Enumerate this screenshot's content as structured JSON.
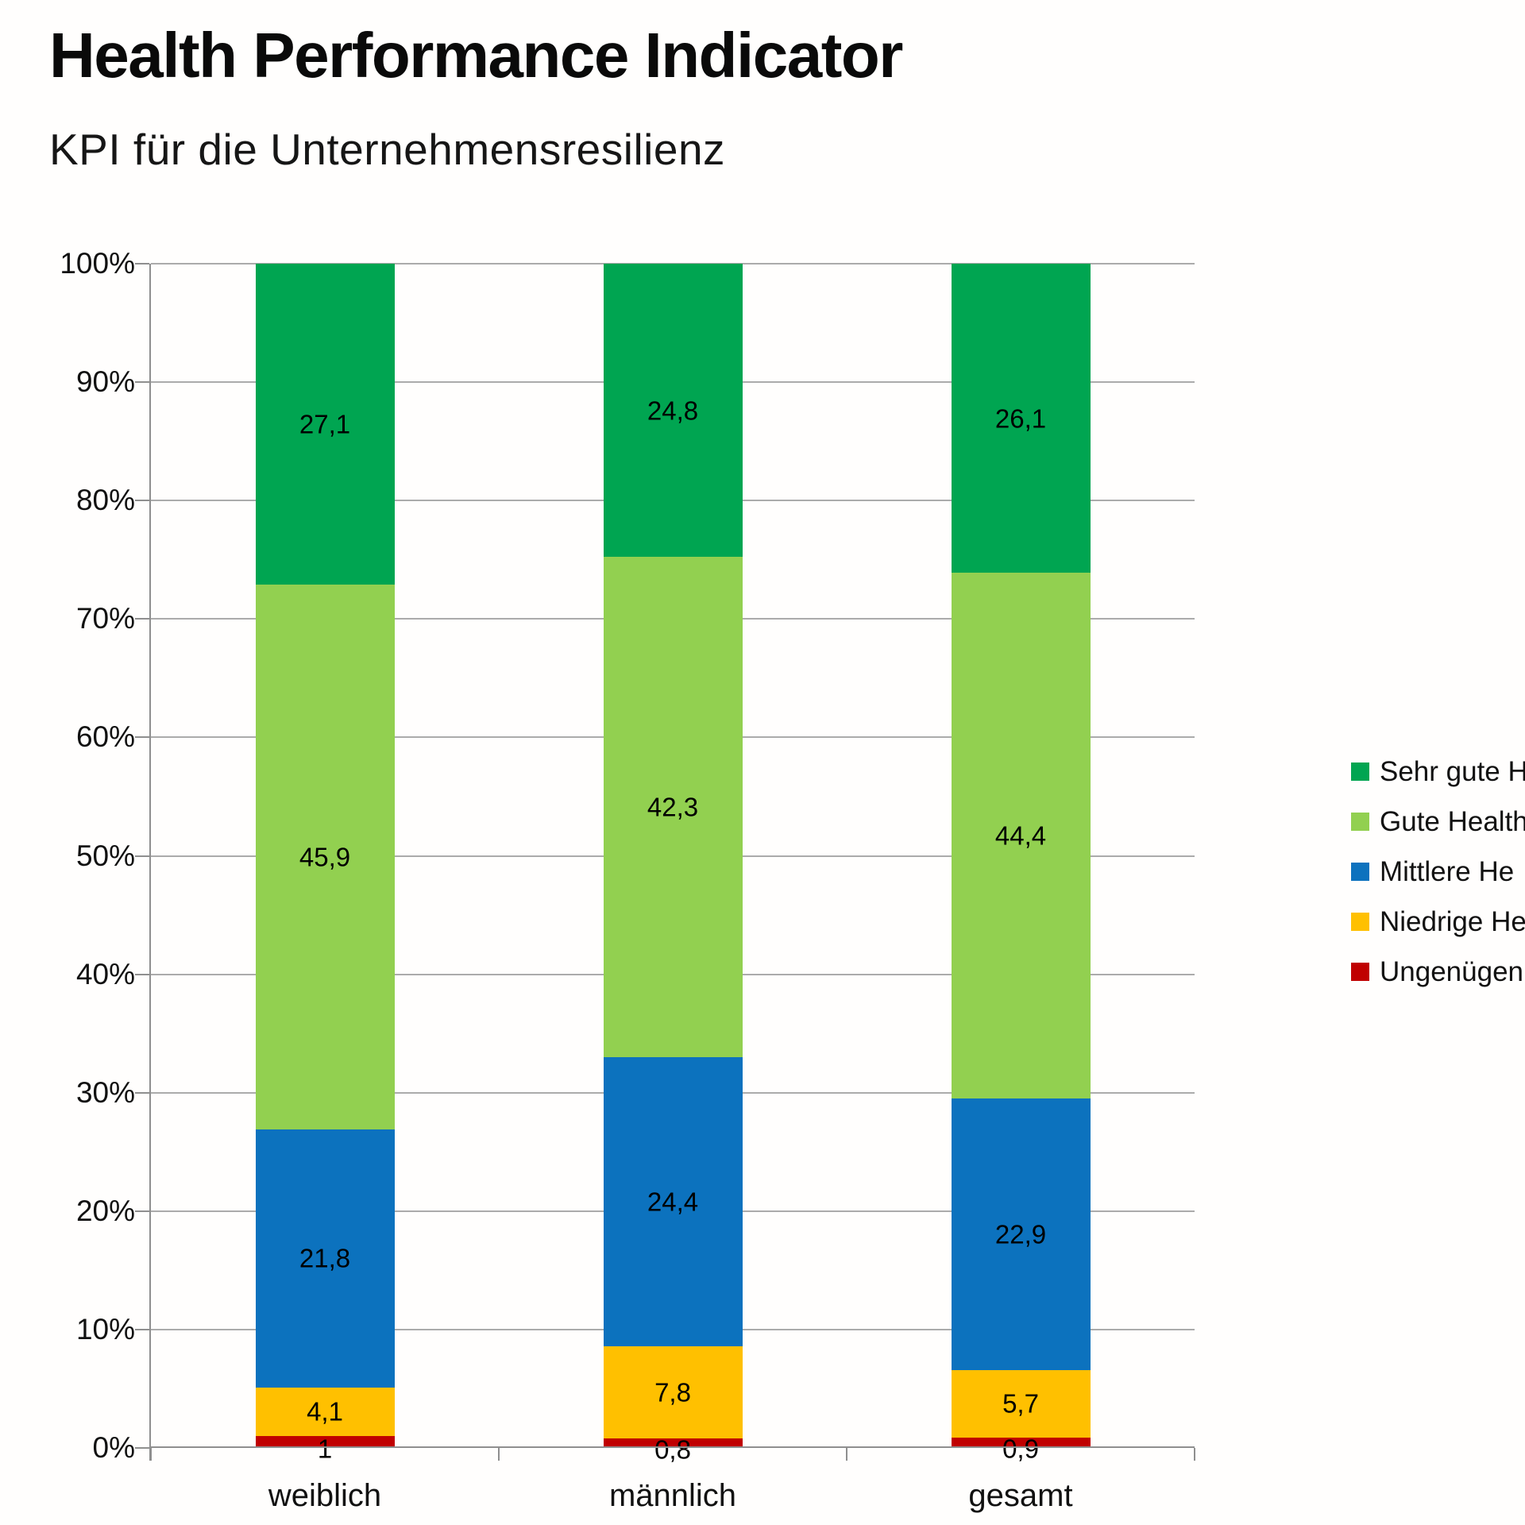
{
  "chart_data": {
    "type": "bar",
    "stacked": true,
    "title": "Health Performance Indicator",
    "subtitle": "KPI für die Unternehmensresilienz",
    "unit": "percent",
    "categories": [
      "weiblich",
      "männlich",
      "gesamt"
    ],
    "series": [
      {
        "name": "Sehr gute H",
        "color": "#00a551",
        "values": [
          27.1,
          24.8,
          26.1
        ],
        "value_labels": [
          "27,1",
          "24,8",
          "26,1"
        ]
      },
      {
        "name": "Gute Health",
        "color": "#92d050",
        "values": [
          45.9,
          42.3,
          44.4
        ],
        "value_labels": [
          "45,9",
          "42,3",
          "44,4"
        ]
      },
      {
        "name": "Mittlere He",
        "color": "#0c72be",
        "values": [
          21.8,
          24.4,
          22.9
        ],
        "value_labels": [
          "21,8",
          "24,4",
          "22,9"
        ]
      },
      {
        "name": "Niedrige He",
        "color": "#ffc000",
        "values": [
          4.1,
          7.8,
          5.7
        ],
        "value_labels": [
          "4,1",
          "7,8",
          "5,7"
        ]
      },
      {
        "name": "Ungenügen",
        "color": "#c00000",
        "values": [
          1,
          0.8,
          0.9
        ],
        "value_labels": [
          "1",
          "0,8",
          "0,9"
        ]
      }
    ],
    "y_axis": {
      "min": 0,
      "max": 100,
      "step": 10,
      "tick_labels": [
        "0%",
        "10%",
        "20%",
        "30%",
        "40%",
        "50%",
        "60%",
        "70%",
        "80%",
        "90%",
        "100%"
      ]
    },
    "grid": true,
    "legend_position": "right",
    "legend_truncated_by_image_edge": true,
    "colors": {
      "gridline": "#ababab",
      "axis": "#8f8f8f",
      "label_text": "#000000"
    }
  }
}
